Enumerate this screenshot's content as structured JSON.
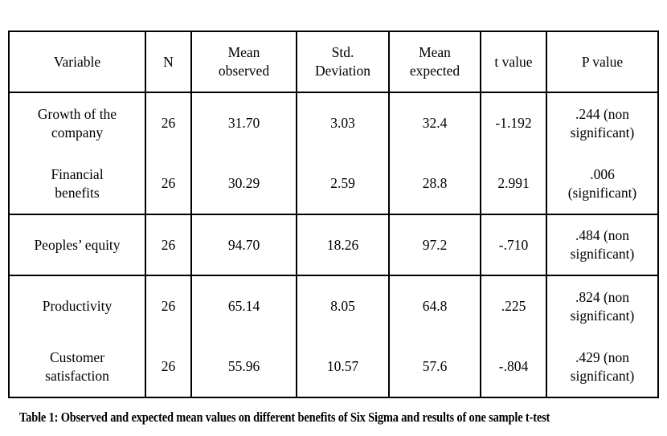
{
  "colors": {
    "background": "#ffffff",
    "border": "#000000",
    "text": "#000000"
  },
  "table": {
    "header": [
      "Variable",
      "N",
      "Mean\nobserved",
      "Std.\nDeviation",
      "Mean\nexpected",
      "t value",
      "P value"
    ],
    "rows": [
      [
        "Growth of the\ncompany",
        "26",
        "31.70",
        "3.03",
        "32.4",
        "-1.192",
        ".244 (non\nsignificant)"
      ],
      [
        "Financial\nbenefits",
        "26",
        "30.29",
        "2.59",
        "28.8",
        "2.991",
        ".006\n(significant)"
      ],
      [
        "Peoples’ equity",
        "26",
        "94.70",
        "18.26",
        "97.2",
        "-.710",
        ".484 (non\nsignificant)"
      ],
      [
        "Productivity",
        "26",
        "65.14",
        "8.05",
        "64.8",
        ".225",
        ".824 (non\nsignificant)"
      ],
      [
        "Customer\nsatisfaction",
        "26",
        "55.96",
        "10.57",
        "57.6",
        "-.804",
        ".429 (non\nsignificant)"
      ]
    ]
  },
  "caption": "Table 1: Observed and expected mean values on different benefits of Six Sigma and results of one sample t-test"
}
